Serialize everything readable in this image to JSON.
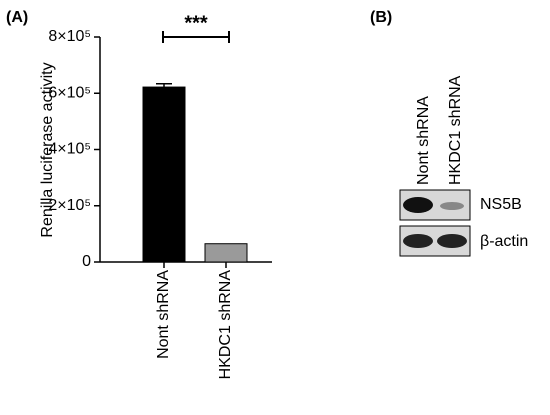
{
  "chart_data": {
    "type": "bar",
    "panel_label": "(A)",
    "ylabel": "Renilla luciferase activity",
    "categories": [
      "Nont shRNA",
      "HKDC1 shRNA"
    ],
    "values": [
      622000,
      65000
    ],
    "errors": [
      12000,
      0
    ],
    "colors": [
      "#000000",
      "#9a9a9a"
    ],
    "ylim": [
      0,
      800000
    ],
    "yticks": [
      0,
      {
        "value": 200000,
        "label": "2×10⁵"
      },
      {
        "value": 400000,
        "label": "4×10⁵"
      },
      {
        "value": 600000,
        "label": "6×10⁵"
      },
      {
        "value": 800000,
        "label": "8×10⁵"
      }
    ],
    "annotation": "***"
  },
  "blot": {
    "panel_label": "(B)",
    "lanes": [
      "Nont shRNA",
      "HKDC1 shRNA"
    ],
    "rows": [
      "NS5B",
      "β-actin"
    ]
  }
}
